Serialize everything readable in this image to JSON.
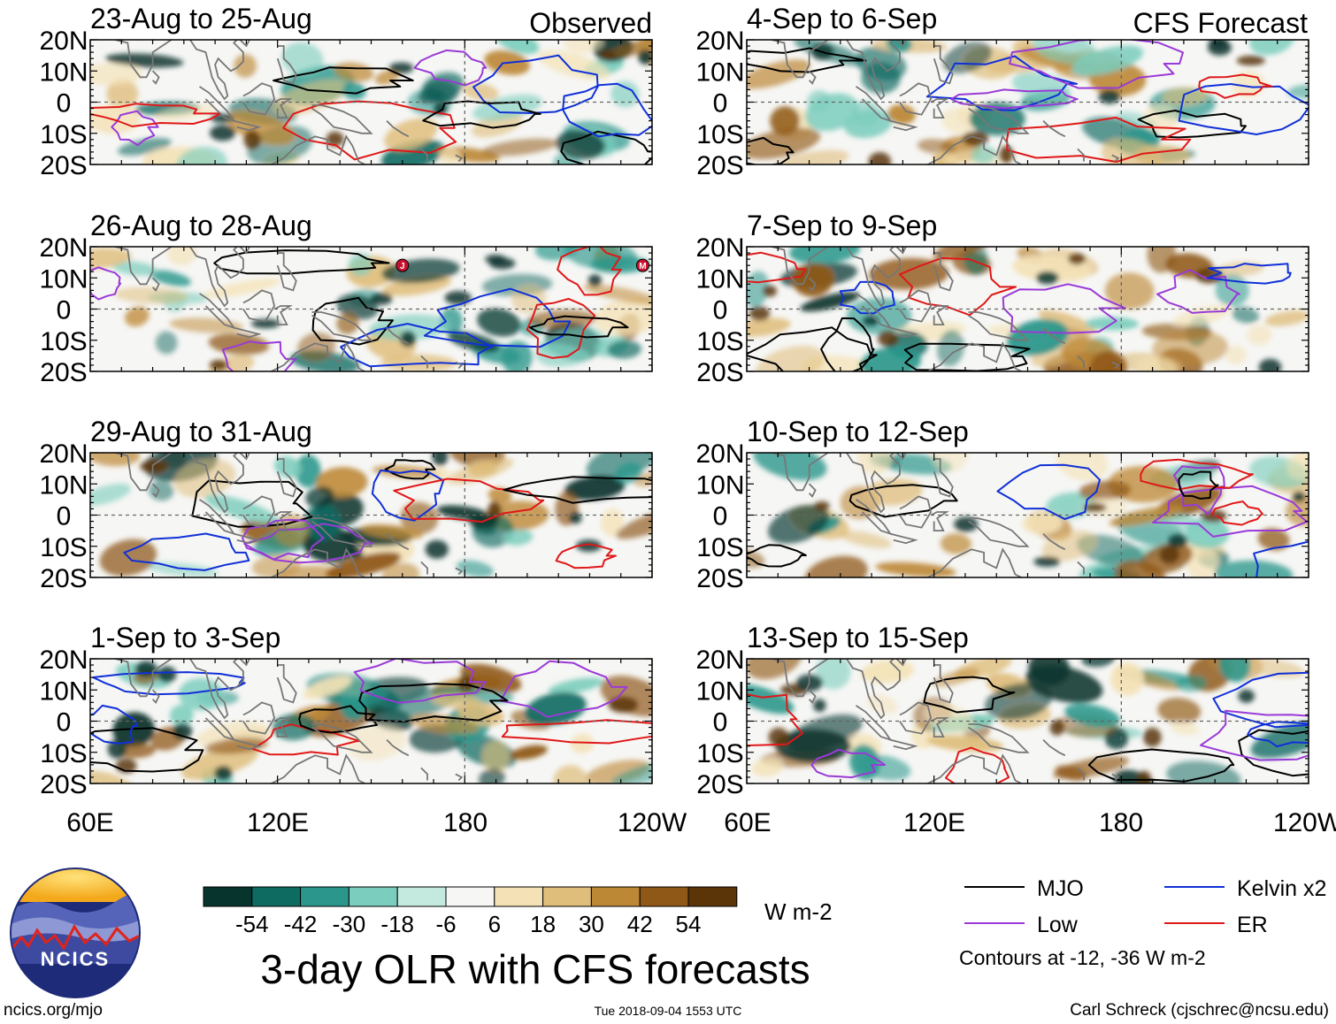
{
  "chart_data": {
    "type": "heatmap",
    "title": "3-day OLR with CFS forecasts",
    "colorbar": {
      "tick_labels": [
        "-54",
        "-42",
        "-30",
        "-18",
        "-6",
        "6",
        "18",
        "30",
        "42",
        "54"
      ],
      "colors": [
        "#08342e",
        "#0d6b62",
        "#2b978c",
        "#7bcdbd",
        "#c4eadf",
        "#f6f6f4",
        "#f4e2b6",
        "#dfbd7b",
        "#bd8836",
        "#8f5817",
        "#5b3508"
      ],
      "units": "W m-2"
    },
    "x_ticks": [
      "60E",
      "120E",
      "180",
      "120W"
    ],
    "y_ticks": [
      "20N",
      "10N",
      "0",
      "10S",
      "20S"
    ],
    "x_range": [
      60,
      240
    ],
    "y_range": [
      -20,
      20
    ],
    "columns": [
      {
        "header": "Observed",
        "panels": [
          {
            "label": "23-Aug to 25-Aug"
          },
          {
            "label": "26-Aug to 28-Aug"
          },
          {
            "label": "29-Aug to 31-Aug"
          },
          {
            "label": "1-Sep to 3-Sep"
          }
        ]
      },
      {
        "header": "CFS Forecast",
        "panels": [
          {
            "label": "4-Sep to 6-Sep"
          },
          {
            "label": "7-Sep to 9-Sep"
          },
          {
            "label": "10-Sep to 12-Sep"
          },
          {
            "label": "13-Sep to 15-Sep"
          }
        ]
      }
    ],
    "legend": [
      {
        "name": "MJO",
        "color": "#000000"
      },
      {
        "name": "Kelvin x2",
        "color": "#1030d8"
      },
      {
        "name": "Low",
        "color": "#9a3ad8"
      },
      {
        "name": "ER",
        "color": "#e01818"
      }
    ],
    "contour_note": "Contours at -12, -36 W m-2",
    "storm_markers": [
      {
        "symbol": "J",
        "lon": 160,
        "lat": 14
      },
      {
        "symbol": "M",
        "lon": 237,
        "lat": 14
      }
    ]
  },
  "logo": {
    "text": "NCICS"
  },
  "footer": {
    "url": "ncics.org/mjo",
    "timestamp": "Tue 2018-09-04 1553 UTC",
    "credit": "Carl Schreck (cjschrec@ncsu.edu)"
  }
}
